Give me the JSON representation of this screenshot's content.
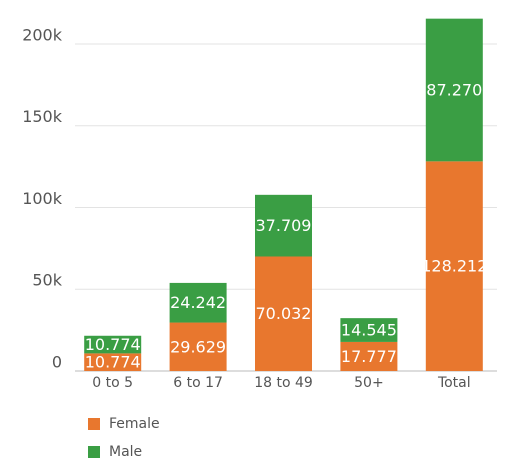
{
  "chart_data": {
    "type": "stacked_bar",
    "categories": [
      "0 to 5",
      "6 to 17",
      "18 to 49",
      "50+",
      "Total"
    ],
    "series": [
      {
        "name": "Female",
        "color": "#e8772e",
        "values": [
          10774,
          29629,
          70032,
          17777,
          128212
        ],
        "value_labels": [
          "10.774",
          "29.629",
          "70.032",
          "17.777",
          "128.212"
        ]
      },
      {
        "name": "Male",
        "color": "#3a9e44",
        "values": [
          10774,
          24242,
          37709,
          14545,
          87270
        ],
        "value_labels": [
          "10.774",
          "24.242",
          "37.709",
          "14.545",
          "87.270"
        ]
      }
    ],
    "ylim": [
      0,
      222000
    ],
    "yticks": [
      0,
      {
        "value": 50000,
        "label": "50k"
      },
      {
        "value": 100000,
        "label": "100k"
      },
      {
        "value": 150000,
        "label": "150k"
      },
      {
        "value": 200000,
        "label": "200k"
      }
    ],
    "grid": true,
    "legend": "bottom"
  }
}
